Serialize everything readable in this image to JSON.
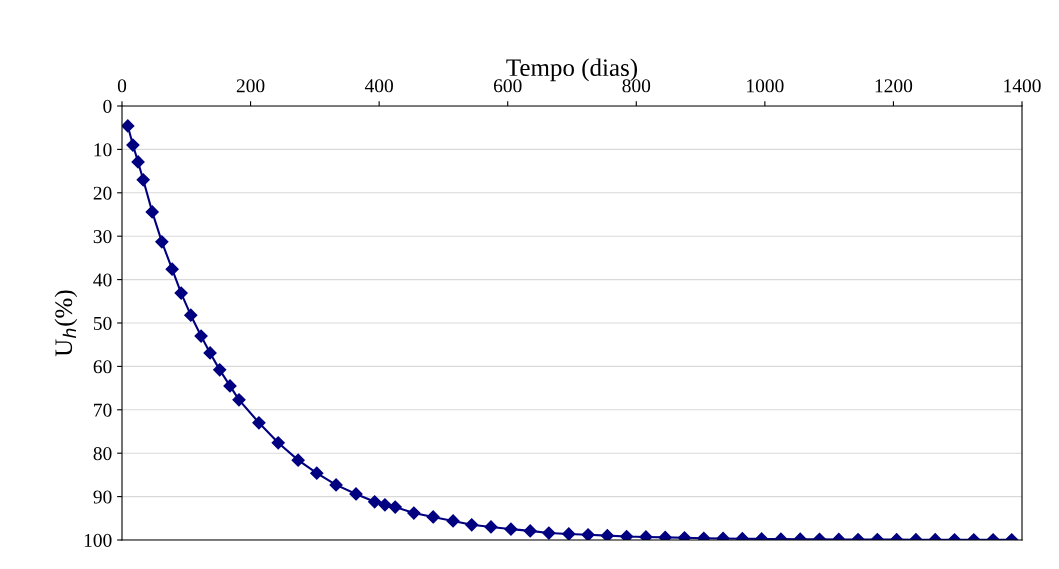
{
  "chart_data": {
    "type": "line",
    "xlabel": "Tempo (dias)",
    "ylabel": "U$_{h}$(%)",
    "xlim": [
      0,
      1400
    ],
    "xticks": [
      0,
      200,
      400,
      600,
      800,
      1000,
      1200,
      1400
    ],
    "ylim": [
      100,
      0
    ],
    "yticks": [
      0,
      10,
      20,
      30,
      40,
      50,
      60,
      70,
      80,
      90,
      100
    ],
    "grid": "y",
    "marker": "diamond",
    "line_style": "solid",
    "legend": false,
    "series": [
      {
        "color": "#000080",
        "x": [
          9,
          17,
          25,
          33,
          47,
          62,
          78,
          92,
          107,
          123,
          137,
          152,
          168,
          182,
          213,
          243,
          274,
          303,
          333,
          364,
          393,
          409,
          425,
          454,
          484,
          515,
          544,
          574,
          605,
          635,
          664,
          695,
          725,
          755,
          785,
          815,
          845,
          875,
          905,
          935,
          965,
          995,
          1025,
          1055,
          1085,
          1115,
          1145,
          1175,
          1205,
          1235,
          1265,
          1295,
          1325,
          1355,
          1384
        ],
        "values": [
          4.6,
          9,
          12.9,
          17,
          24.4,
          31.3,
          37.6,
          43.1,
          48.2,
          53,
          56.9,
          60.8,
          64.5,
          67.7,
          73,
          77.6,
          81.6,
          84.6,
          87.3,
          89.4,
          91.2,
          91.9,
          92.4,
          93.8,
          94.7,
          95.6,
          96.5,
          97,
          97.5,
          97.9,
          98.4,
          98.6,
          98.8,
          99,
          99.2,
          99.3,
          99.4,
          99.5,
          99.6,
          99.65,
          99.7,
          99.75,
          99.8,
          99.82,
          99.85,
          99.87,
          99.9,
          99.91,
          99.92,
          99.93,
          99.94,
          99.95,
          99.96,
          99.97,
          99.97
        ]
      }
    ]
  }
}
